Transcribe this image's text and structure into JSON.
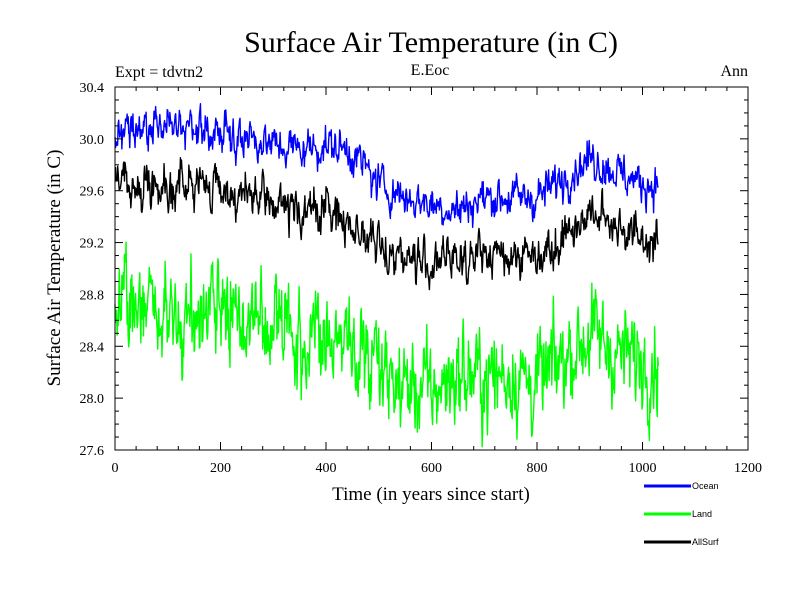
{
  "chart_data": {
    "type": "line",
    "title": "Surface Air Temperature (in C)",
    "subtitle_left": "Expt = tdvtn2",
    "subtitle_center": "E.Eoc",
    "subtitle_right": "Ann",
    "xlabel": "Time (in years since start)",
    "ylabel": "Surface Air Temperature (in C)",
    "xlim": [
      0,
      1200
    ],
    "ylim": [
      27.6,
      30.4
    ],
    "xticks": [
      0,
      200,
      400,
      600,
      800,
      1000,
      1200
    ],
    "xtick_labels": [
      "0",
      "200",
      "400",
      "600",
      "800",
      "1000",
      "1200"
    ],
    "yticks": [
      27.6,
      28.0,
      28.4,
      28.8,
      29.2,
      29.6,
      30.0,
      30.4
    ],
    "ytick_labels": [
      "27.6",
      "28.0",
      "28.4",
      "28.8",
      "29.2",
      "29.6",
      "30.0",
      "30.4"
    ],
    "legend_position": "bottom-right-outside",
    "x_range": [
      0,
      1030
    ],
    "series": [
      {
        "name": "Ocean",
        "color": "#0000ff",
        "noise": 0.09,
        "trend_x": [
          0,
          50,
          100,
          150,
          200,
          250,
          300,
          350,
          400,
          450,
          500,
          550,
          600,
          650,
          700,
          750,
          800,
          850,
          900,
          950,
          1000,
          1030
        ],
        "trend_y": [
          30.05,
          30.05,
          30.1,
          30.08,
          30.05,
          30.02,
          29.95,
          29.92,
          29.95,
          29.9,
          29.65,
          29.55,
          29.5,
          29.45,
          29.55,
          29.55,
          29.55,
          29.7,
          29.85,
          29.75,
          29.65,
          29.65
        ]
      },
      {
        "name": "Land",
        "color": "#00ff00",
        "noise": 0.22,
        "trend_x": [
          0,
          50,
          100,
          150,
          200,
          250,
          300,
          350,
          400,
          450,
          500,
          550,
          600,
          650,
          700,
          750,
          800,
          850,
          900,
          950,
          1000,
          1030
        ],
        "trend_y": [
          28.75,
          28.7,
          28.65,
          28.7,
          28.68,
          28.6,
          28.55,
          28.5,
          28.5,
          28.4,
          28.15,
          28.1,
          28.05,
          28.2,
          28.15,
          28.2,
          28.1,
          28.3,
          28.5,
          28.35,
          28.3,
          28.3
        ]
      },
      {
        "name": "AllSurf",
        "color": "#000000",
        "noise": 0.1,
        "trend_x": [
          0,
          50,
          100,
          150,
          200,
          250,
          300,
          350,
          400,
          450,
          500,
          550,
          600,
          650,
          700,
          750,
          800,
          850,
          900,
          950,
          1000,
          1030
        ],
        "trend_y": [
          29.7,
          29.65,
          29.65,
          29.65,
          29.62,
          29.55,
          29.5,
          29.45,
          29.45,
          29.35,
          29.15,
          29.1,
          29.02,
          29.1,
          29.1,
          29.12,
          29.1,
          29.25,
          29.42,
          29.35,
          29.22,
          29.2
        ]
      }
    ]
  }
}
